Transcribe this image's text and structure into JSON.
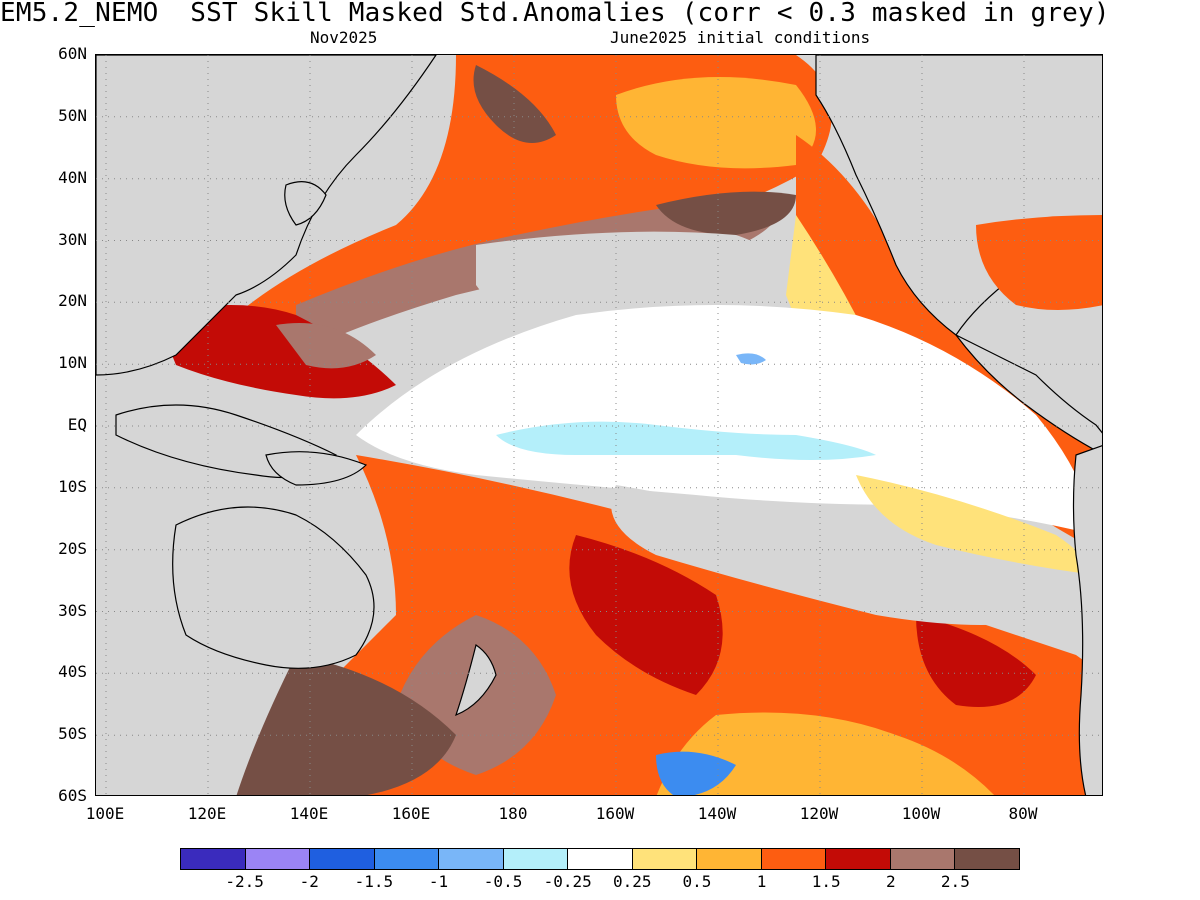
{
  "title": "EM5.2_NEMO  SST Skill Masked Std.Anomalies (corr < 0.3 masked in grey)",
  "subtitle_left": "Nov2025",
  "subtitle_right": "June2025 initial conditions",
  "lat_labels": [
    "60N",
    "50N",
    "40N",
    "30N",
    "20N",
    "10N",
    "EQ",
    "10S",
    "20S",
    "30S",
    "40S",
    "50S",
    "60S"
  ],
  "lon_labels": [
    "100E",
    "120E",
    "140E",
    "160E",
    "180",
    "160W",
    "140W",
    "120W",
    "100W",
    "80W"
  ],
  "mask_color": "#d6d6d6",
  "colorbar": {
    "colors": [
      "#3a2bbd",
      "#9b84f5",
      "#1f5fe0",
      "#3c8cf0",
      "#79b6f8",
      "#b4effa",
      "#ffffff",
      "#ffe27a",
      "#ffb534",
      "#fd5d11",
      "#c30b06",
      "#a9776d",
      "#754f45"
    ],
    "labels": [
      "-2.5",
      "-2",
      "-1.5",
      "-1",
      "-0.5",
      "-0.25",
      "0.25",
      "0.5",
      "1",
      "1.5",
      "2",
      "2.5"
    ]
  }
}
